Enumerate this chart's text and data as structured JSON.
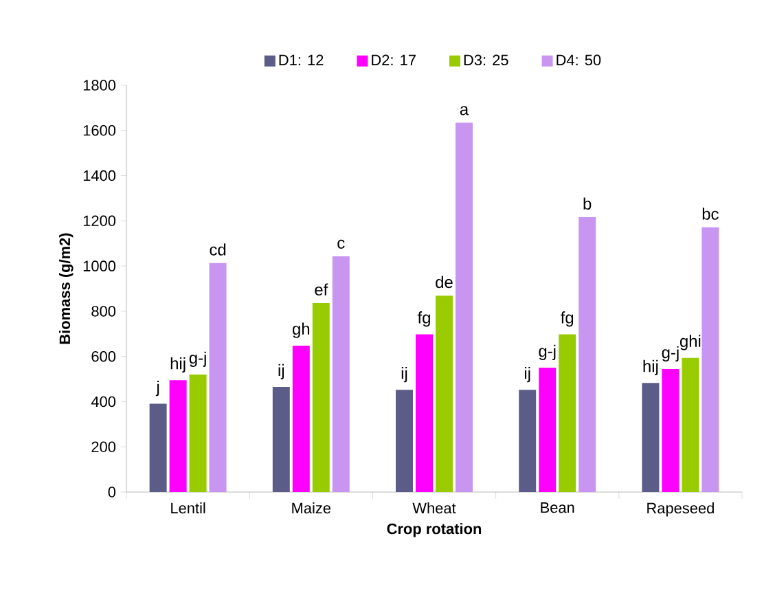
{
  "chart_data": {
    "type": "bar",
    "xlabel": "Crop rotation",
    "ylabel": "Biomass (g/m2)",
    "categories": [
      "Lentil",
      "Maize",
      "Wheat",
      "Bean",
      "Rapeseed"
    ],
    "series": [
      {
        "name": "D1: 12",
        "color": "#5c5c88",
        "values": [
          391,
          465,
          452,
          452,
          483
        ],
        "value_labels": [
          "j",
          "ij",
          "ij",
          "ij",
          "hij"
        ]
      },
      {
        "name": "D2: 17",
        "color": "#ff00ff",
        "values": [
          495,
          648,
          698,
          550,
          544
        ],
        "value_labels": [
          "hij",
          "gh",
          "fg",
          "g-j",
          "g-j"
        ]
      },
      {
        "name": "D3: 25",
        "color": "#99cc00",
        "values": [
          520,
          836,
          869,
          698,
          594
        ],
        "value_labels": [
          "g-j",
          "ef",
          "de",
          "fg",
          "ghi"
        ]
      },
      {
        "name": "D4: 50",
        "color": "#c896f0",
        "values": [
          1013,
          1043,
          1634,
          1216,
          1171
        ],
        "value_labels": [
          "cd",
          "c",
          "a",
          "b",
          "bc"
        ]
      }
    ],
    "ylim": [
      0,
      1800
    ],
    "yticks": [
      0,
      200,
      400,
      600,
      800,
      1000,
      1200,
      1400,
      1600,
      1800
    ],
    "legend": "top"
  }
}
